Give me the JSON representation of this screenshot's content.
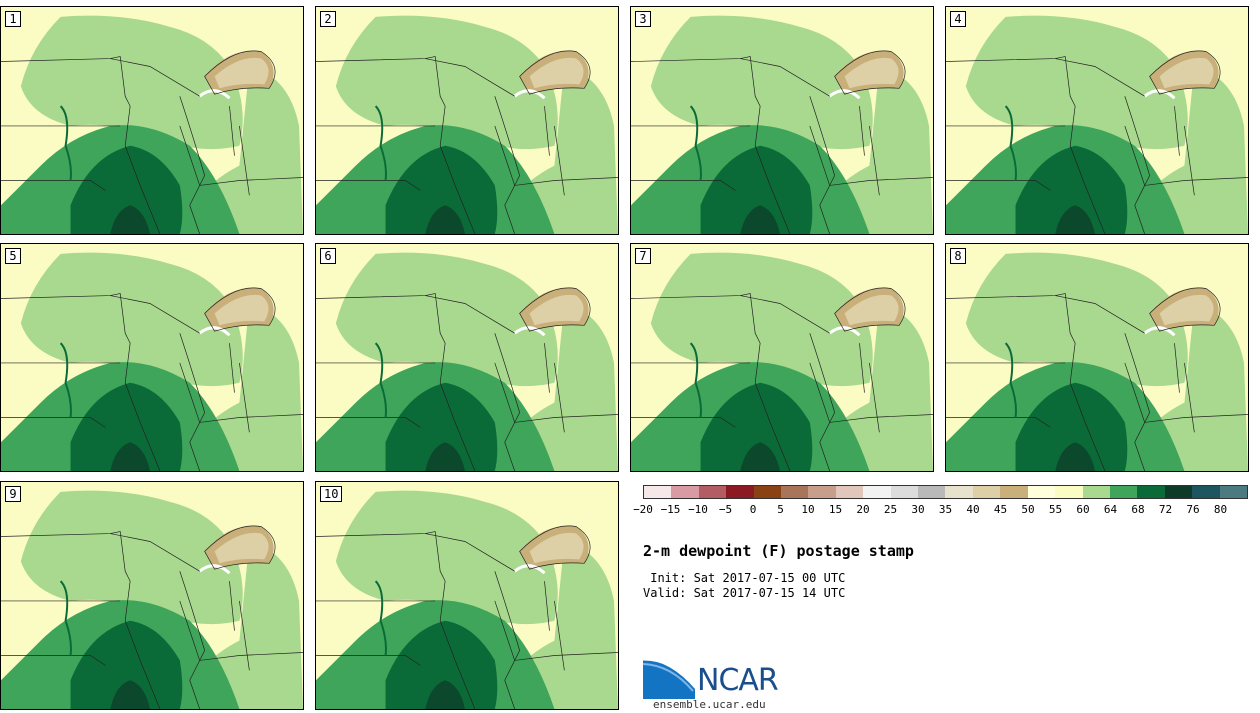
{
  "title": "2-m dewpoint (F) postage stamp",
  "init_label": " Init: Sat 2017-07-15 00 UTC",
  "valid_label": "Valid: Sat 2017-07-15 14 UTC",
  "logo_text": "NCAR",
  "url": "ensemble.ucar.edu",
  "panels": [
    "1",
    "2",
    "3",
    "4",
    "5",
    "6",
    "7",
    "8",
    "9",
    "10"
  ],
  "colorbar": {
    "colors": [
      "#f6e8e8",
      "#d89ba4",
      "#b35c63",
      "#8b1a22",
      "#8a4215",
      "#a8745a",
      "#c79e8b",
      "#e0c6bb",
      "#f2f2f2",
      "#dcdcdc",
      "#b9b9b9",
      "#e6e2cc",
      "#ddcfa6",
      "#c9b07a",
      "#ffffdc",
      "#fbfbc4",
      "#a8d98e",
      "#3fa55a",
      "#0b6b38",
      "#0d3b28",
      "#1d5660",
      "#4b7b80"
    ],
    "labels": [
      "−20",
      "−15",
      "−10",
      "−5",
      "0",
      "5",
      "10",
      "15",
      "20",
      "25",
      "30",
      "35",
      "40",
      "45",
      "50",
      "55",
      "60",
      "64",
      "68",
      "72",
      "76",
      "80"
    ]
  }
}
